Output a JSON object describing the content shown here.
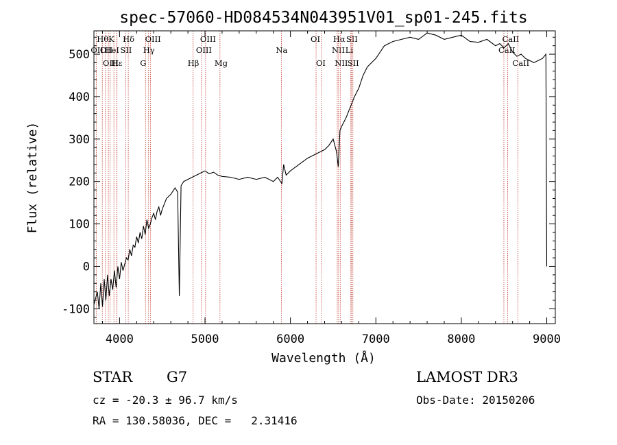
{
  "chart_data": {
    "type": "line",
    "title": "spec-57060-HD084534N043951V01_sp01-245.fits",
    "xlabel": "Wavelength (Å)",
    "ylabel": "Flux (relative)",
    "xlim": [
      3700,
      9100
    ],
    "ylim": [
      -135,
      555
    ],
    "xticks": [
      4000,
      5000,
      6000,
      7000,
      8000,
      9000
    ],
    "yticks": [
      -100,
      0,
      100,
      200,
      300,
      400,
      500
    ],
    "series": [
      {
        "name": "spectrum",
        "x": [
          3700,
          3740,
          3760,
          3780,
          3800,
          3820,
          3840,
          3860,
          3880,
          3900,
          3920,
          3940,
          3960,
          3980,
          4000,
          4020,
          4040,
          4060,
          4080,
          4100,
          4120,
          4140,
          4160,
          4180,
          4200,
          4220,
          4240,
          4260,
          4280,
          4300,
          4320,
          4340,
          4360,
          4380,
          4400,
          4420,
          4440,
          4460,
          4480,
          4500,
          4550,
          4600,
          4650,
          4680,
          4700,
          4720,
          4750,
          4800,
          4850,
          4900,
          4950,
          5000,
          5050,
          5100,
          5150,
          5200,
          5300,
          5400,
          5500,
          5600,
          5700,
          5800,
          5850,
          5900,
          5920,
          5950,
          6000,
          6100,
          6200,
          6300,
          6400,
          6450,
          6500,
          6540,
          6560,
          6580,
          6600,
          6650,
          6700,
          6750,
          6800,
          6850,
          6900,
          6950,
          7000,
          7050,
          7100,
          7200,
          7300,
          7400,
          7500,
          7600,
          7700,
          7800,
          7900,
          8000,
          8100,
          8200,
          8300,
          8400,
          8450,
          8500,
          8550,
          8600,
          8650,
          8700,
          8750,
          8800,
          8850,
          8900,
          8950,
          8990,
          9000
        ],
        "values": [
          -90,
          -60,
          -100,
          -40,
          -95,
          -30,
          -80,
          -20,
          -70,
          -30,
          -55,
          -10,
          -50,
          0,
          -30,
          10,
          -10,
          5,
          20,
          15,
          40,
          25,
          50,
          45,
          70,
          55,
          80,
          65,
          95,
          75,
          110,
          90,
          100,
          115,
          125,
          110,
          130,
          140,
          120,
          135,
          160,
          170,
          185,
          175,
          -70,
          190,
          200,
          205,
          210,
          215,
          220,
          225,
          218,
          222,
          215,
          212,
          210,
          205,
          210,
          205,
          210,
          200,
          210,
          195,
          240,
          215,
          225,
          240,
          255,
          265,
          275,
          285,
          300,
          270,
          235,
          320,
          330,
          350,
          375,
          400,
          420,
          450,
          470,
          480,
          490,
          505,
          520,
          530,
          535,
          540,
          535,
          550,
          545,
          535,
          540,
          545,
          530,
          528,
          535,
          520,
          525,
          515,
          525,
          505,
          495,
          500,
          490,
          485,
          480,
          485,
          490,
          500,
          0
        ]
      }
    ],
    "line_markers": [
      {
        "wl": 3727,
        "label": "OII",
        "row": 2
      },
      {
        "wl": 3798,
        "label": "Hθ",
        "row": 1
      },
      {
        "wl": 3835,
        "label": "OII",
        "row": 2
      },
      {
        "wl": 3869,
        "label": "OIII",
        "row": 3
      },
      {
        "wl": 3889,
        "label": "HeI",
        "row": 2
      },
      {
        "wl": 3934,
        "label": "K",
        "row": 1
      },
      {
        "wl": 3970,
        "label": "Hε",
        "row": 3
      },
      {
        "wl": 3968,
        "label": "H",
        "row": 3
      },
      {
        "wl": 4072,
        "label": "SII",
        "row": 2
      },
      {
        "wl": 4102,
        "label": "Hδ",
        "row": 1
      },
      {
        "wl": 4304,
        "label": "G",
        "row": 3
      },
      {
        "wl": 4340,
        "label": "Hγ",
        "row": 2
      },
      {
        "wl": 4363,
        "label": "OIII",
        "row": 1
      },
      {
        "wl": 4861,
        "label": "Hβ",
        "row": 3
      },
      {
        "wl": 4959,
        "label": "OIII",
        "row": 2
      },
      {
        "wl": 5007,
        "label": "OIII",
        "row": 1
      },
      {
        "wl": 5175,
        "label": "Mg",
        "row": 3
      },
      {
        "wl": 5894,
        "label": "Na",
        "row": 2
      },
      {
        "wl": 6300,
        "label": "OI",
        "row": 1
      },
      {
        "wl": 6364,
        "label": "OI",
        "row": 3
      },
      {
        "wl": 6548,
        "label": "NII",
        "row": 2
      },
      {
        "wl": 6563,
        "label": "Hα",
        "row": 1
      },
      {
        "wl": 6583,
        "label": "NII",
        "row": 3
      },
      {
        "wl": 6707,
        "label": "Li",
        "row": 2
      },
      {
        "wl": 6716,
        "label": "SII",
        "row": 1
      },
      {
        "wl": 6731,
        "label": "SII",
        "row": 3
      },
      {
        "wl": 8498,
        "label": "CaII",
        "row": 2
      },
      {
        "wl": 8542,
        "label": "CaII",
        "row": 1
      },
      {
        "wl": 8662,
        "label": "CaII",
        "row": 3
      }
    ]
  },
  "info": {
    "class_label": "STAR",
    "subclass": "G7",
    "survey": "LAMOST DR3",
    "cz_line": "cz = -20.3 ± 96.7 km/s",
    "obs_date_line": "Obs-Date: 20150206",
    "radec_line": "RA = 130.58036, DEC =   2.31416"
  },
  "colors": {
    "axis": "#000000",
    "spectrum": "#000000",
    "marker_line": "#c0392b"
  }
}
